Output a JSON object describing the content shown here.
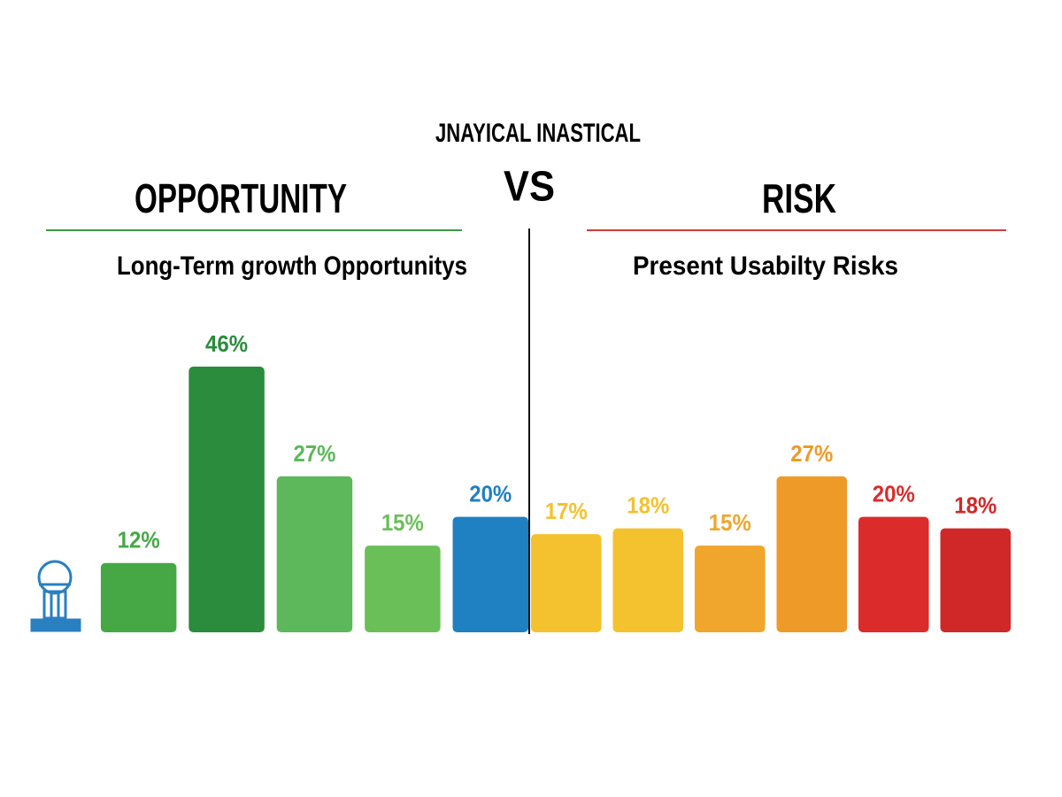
{
  "chart_data": {
    "type": "bar",
    "title": "JNAYICAL INASTICAL",
    "divider": "VS",
    "groups": [
      {
        "heading": "OPPORTUNITY",
        "subtitle": "Long-Term growth Opportunitys",
        "line_color": "#3a9a44",
        "values": [
          12,
          46,
          27,
          15,
          20
        ],
        "value_labels": [
          "12%",
          "46%",
          "27%",
          "15%",
          "20%"
        ],
        "colors": [
          "#45a845",
          "#2a8c3c",
          "#5cb85a",
          "#6abf58",
          "#1f80c2"
        ]
      },
      {
        "heading": "RISK",
        "subtitle": "Present Usabilty Risks",
        "line_color": "#d93a3a",
        "values": [
          17,
          18,
          15,
          27,
          20,
          18
        ],
        "value_labels": [
          "17%",
          "18%",
          "15%",
          "27%",
          "20%",
          "18%"
        ],
        "colors": [
          "#f3c22e",
          "#f3c22e",
          "#f0a52c",
          "#ee9a28",
          "#dc2b2b",
          "#d02828"
        ]
      }
    ]
  }
}
